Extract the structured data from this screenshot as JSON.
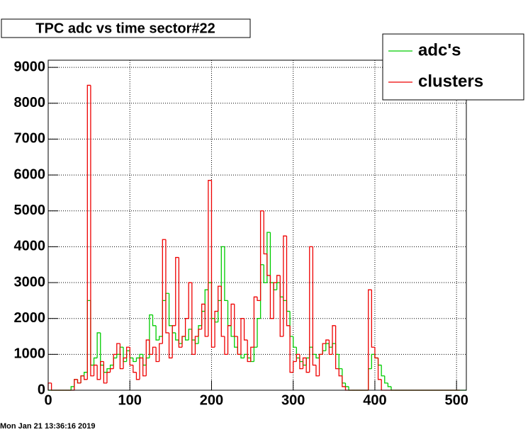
{
  "chart_data": {
    "type": "histogram",
    "title": "TPC adc vs time sector#22",
    "date": "Mon Jan 21 13:36:16 2019",
    "bins": [
      0,
      4,
      8,
      12,
      16,
      20,
      24,
      28,
      32,
      36,
      40,
      44,
      48,
      52,
      56,
      60,
      64,
      68,
      72,
      76,
      80,
      84,
      88,
      92,
      96,
      100,
      104,
      108,
      112,
      116,
      120,
      124,
      128,
      132,
      136,
      140,
      144,
      148,
      152,
      156,
      160,
      164,
      168,
      172,
      176,
      180,
      184,
      188,
      192,
      196,
      200,
      204,
      208,
      212,
      216,
      220,
      224,
      228,
      232,
      236,
      240,
      244,
      248,
      252,
      256,
      260,
      264,
      268,
      272,
      276,
      280,
      284,
      288,
      292,
      296,
      300,
      304,
      308,
      312,
      316,
      320,
      324,
      328,
      332,
      336,
      340,
      344,
      348,
      352,
      356,
      360,
      364,
      368,
      372,
      376,
      380,
      384,
      388,
      392,
      396,
      400,
      404,
      408,
      412,
      416,
      420,
      424,
      428,
      432,
      436,
      440,
      444,
      448,
      452,
      456,
      460,
      464,
      468,
      472,
      476,
      480,
      484,
      488,
      492,
      496,
      500,
      504,
      508,
      512
    ],
    "series": [
      {
        "name": "adc's",
        "color": "#00cc00",
        "values": [
          0,
          0,
          0,
          0,
          0,
          0,
          0,
          100,
          300,
          200,
          400,
          500,
          2500,
          700,
          900,
          1600,
          700,
          500,
          600,
          700,
          900,
          1000,
          1200,
          800,
          1100,
          900,
          800,
          900,
          1000,
          700,
          900,
          2100,
          1800,
          1400,
          1500,
          2500,
          2700,
          1800,
          1600,
          1400,
          1300,
          1500,
          1400,
          1700,
          1400,
          1300,
          1800,
          2200,
          2800,
          3000,
          2000,
          1900,
          2500,
          4000,
          2500,
          1800,
          1500,
          1200,
          1000,
          900,
          1000,
          900,
          800,
          1200,
          2000,
          3500,
          3000,
          4400,
          3000,
          2800,
          3000,
          2600,
          2500,
          2200,
          1500,
          1200,
          900,
          800,
          700,
          900,
          1200,
          1000,
          900,
          1000,
          1100,
          1300,
          1200,
          1300,
          1000,
          600,
          200,
          100,
          0,
          0,
          0,
          0,
          0,
          0,
          600,
          1000,
          900,
          700,
          400,
          200,
          100,
          0,
          0,
          0,
          0,
          0,
          0,
          0,
          0,
          0,
          0,
          0,
          0,
          0,
          0,
          0,
          0,
          0,
          0,
          0,
          0,
          0,
          0,
          0
        ]
      },
      {
        "name": "clusters",
        "color": "#ee0000",
        "values": [
          200,
          0,
          0,
          0,
          0,
          0,
          0,
          0,
          300,
          200,
          400,
          300,
          8500,
          400,
          700,
          300,
          800,
          200,
          500,
          600,
          1000,
          1300,
          600,
          900,
          1200,
          700,
          500,
          300,
          900,
          400,
          1400,
          1000,
          1200,
          800,
          1300,
          4200,
          1600,
          900,
          1800,
          3700,
          1200,
          1500,
          2000,
          3000,
          1000,
          1500,
          1700,
          2400,
          1500,
          5850,
          1200,
          2200,
          2900,
          1500,
          1000,
          1800,
          2400,
          1500,
          1000,
          2000,
          1400,
          800,
          1200,
          2600,
          2500,
          5000,
          3800,
          3200,
          2000,
          3000,
          3200,
          1500,
          4300,
          1800,
          500,
          800,
          1000,
          600,
          900,
          500,
          4000,
          700,
          400,
          1000,
          1300,
          1400,
          1000,
          1800,
          600,
          400,
          100,
          0,
          0,
          0,
          0,
          0,
          0,
          0,
          2800,
          1200,
          900,
          300,
          0,
          0,
          0,
          0,
          0,
          0,
          0,
          0,
          0,
          0,
          0,
          0,
          0,
          0,
          0,
          0,
          0,
          0,
          0,
          0,
          0,
          0,
          0,
          0
        ]
      }
    ],
    "xlim": [
      0,
      512
    ],
    "ylim": [
      0,
      9200
    ],
    "xticks": [
      0,
      100,
      200,
      300,
      400,
      500
    ],
    "yticks": [
      0,
      1000,
      2000,
      3000,
      4000,
      5000,
      6000,
      7000,
      8000,
      9000
    ],
    "grid": true,
    "legend": "top-right"
  }
}
